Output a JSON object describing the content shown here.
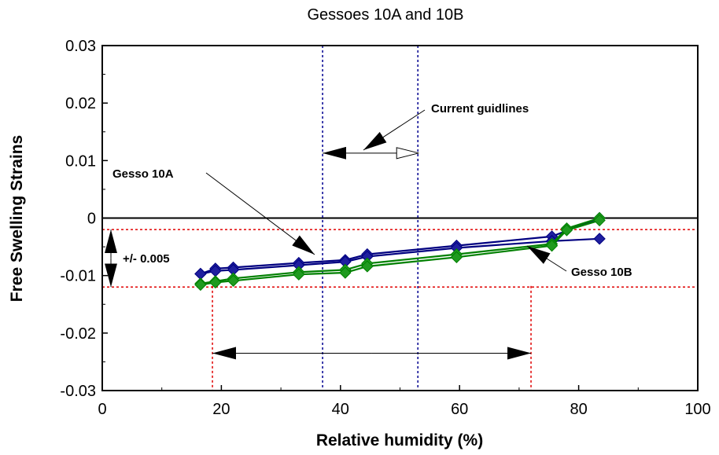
{
  "chart_data": {
    "type": "line",
    "title": "Gessoes 10A and 10B",
    "xlabel": "Relative humidity (%)",
    "ylabel": "Free Swelling Strains",
    "xlim": [
      0,
      100
    ],
    "ylim": [
      -0.03,
      0.03
    ],
    "x_ticks": [
      0,
      20,
      40,
      60,
      80,
      100
    ],
    "y_ticks": [
      0.03,
      0.02,
      0.01,
      0,
      -0.01,
      -0.02,
      -0.03
    ],
    "x_tick_labels": [
      "0",
      "20",
      "40",
      "60",
      "80",
      "100"
    ],
    "y_tick_labels": [
      "0.03",
      "0.02",
      "0.01",
      "0",
      "-0.01",
      "-0.02",
      "-0.03"
    ],
    "grid": false,
    "series": [
      {
        "name": "Gesso 10A",
        "color": "#000080",
        "marker_color": "#1f1f9f",
        "segments": [
          [
            [
              16.5,
              -0.0097
            ],
            [
              19,
              -0.0088
            ],
            [
              22,
              -0.0086
            ],
            [
              33,
              -0.0078
            ],
            [
              40.8,
              -0.0073
            ],
            [
              44.5,
              -0.0063
            ],
            [
              59.5,
              -0.0048
            ],
            [
              75.5,
              -0.0032
            ],
            [
              83.5,
              0.0
            ]
          ],
          [
            [
              16.5,
              -0.0097
            ],
            [
              19,
              -0.0092
            ],
            [
              22,
              -0.009
            ],
            [
              33,
              -0.0082
            ],
            [
              40.8,
              -0.0076
            ],
            [
              44.5,
              -0.0067
            ],
            [
              59.5,
              -0.0052
            ],
            [
              75.5,
              -0.004
            ],
            [
              83.5,
              -0.0036
            ]
          ]
        ]
      },
      {
        "name": "Gesso 10B",
        "color": "#008000",
        "marker_color": "#1f9a1f",
        "segments": [
          [
            [
              16.5,
              -0.0114
            ],
            [
              19,
              -0.011
            ],
            [
              22,
              -0.0105
            ],
            [
              33,
              -0.0094
            ],
            [
              40.8,
              -0.009
            ],
            [
              44.5,
              -0.0079
            ],
            [
              59.5,
              -0.0063
            ],
            [
              75.5,
              -0.0045
            ],
            [
              78,
              -0.0018
            ],
            [
              83.5,
              0.0
            ]
          ],
          [
            [
              16.5,
              -0.0116
            ],
            [
              19,
              -0.0112
            ],
            [
              22,
              -0.0109
            ],
            [
              33,
              -0.0098
            ],
            [
              40.8,
              -0.0095
            ],
            [
              44.5,
              -0.0084
            ],
            [
              59.5,
              -0.0068
            ],
            [
              75.5,
              -0.0048
            ],
            [
              78,
              -0.0021
            ],
            [
              83.5,
              -0.0004
            ]
          ]
        ]
      }
    ],
    "reference_lines": {
      "zero_line_y": 0,
      "horizontal_dashed_y": [
        -0.002,
        -0.012
      ],
      "horizontal_dashed_color": "#e00000",
      "vertical_red_dashed_x": [
        18.5,
        72
      ],
      "vertical_blue_dashed_x": [
        37,
        53
      ],
      "vertical_blue_color": "#000090"
    },
    "annotations": {
      "current_guidelines": "Current guidlines",
      "gesso_10a": "Gesso 10A",
      "gesso_10b": "Gesso 10B",
      "band": "+/- 0.005"
    }
  }
}
